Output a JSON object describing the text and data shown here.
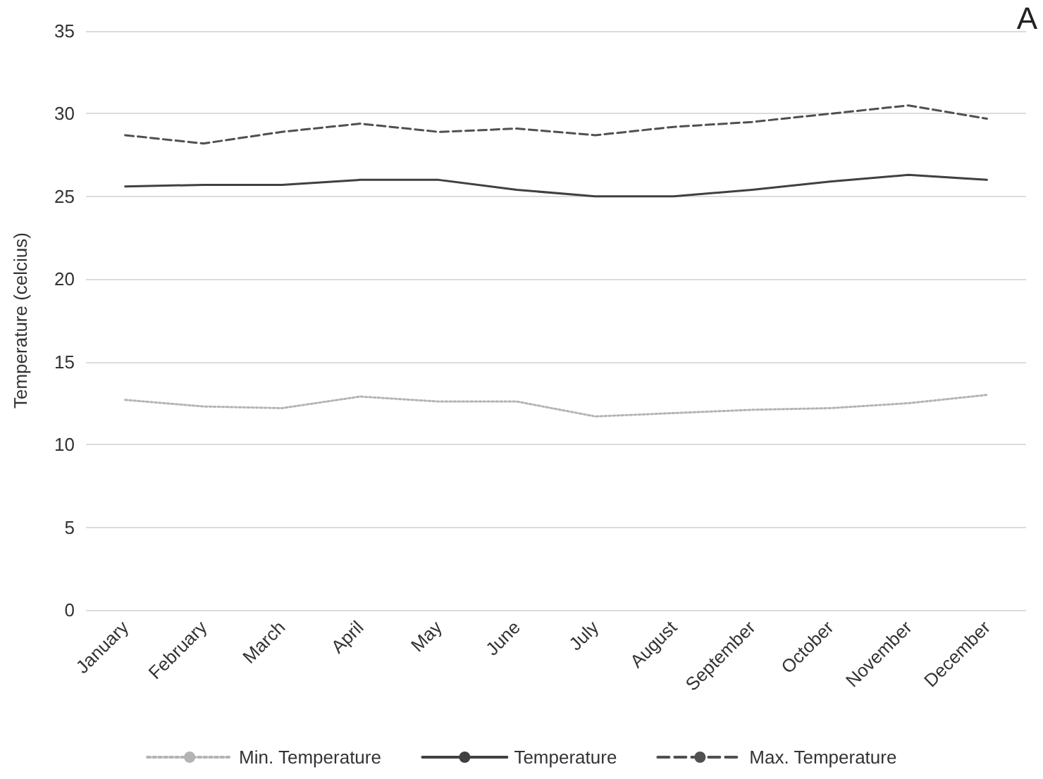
{
  "chart_data": {
    "type": "line",
    "ylabel": "Temperature (celcius)",
    "annotations": [
      "A"
    ],
    "categories": [
      "January",
      "February",
      "March",
      "April",
      "May",
      "June",
      "July",
      "August",
      "September",
      "October",
      "November",
      "December"
    ],
    "series": [
      {
        "name": "Min. Temperature",
        "color": "#b4b4b4",
        "line_style": "dotted",
        "values": [
          12.7,
          12.3,
          12.2,
          12.9,
          12.6,
          12.6,
          11.7,
          11.9,
          12.1,
          12.2,
          12.5,
          13.0
        ]
      },
      {
        "name": "Temperature",
        "color": "#404040",
        "line_style": "solid",
        "values": [
          25.6,
          25.7,
          25.7,
          26.0,
          26.0,
          25.4,
          25.0,
          25.0,
          25.4,
          25.9,
          26.3,
          26.0
        ]
      },
      {
        "name": "Max. Temperature",
        "color": "#505050",
        "line_style": "dashed",
        "values": [
          28.7,
          28.2,
          28.9,
          29.4,
          28.9,
          29.1,
          28.7,
          29.2,
          29.5,
          30.0,
          30.5,
          29.7
        ]
      }
    ],
    "ylim": [
      0,
      35
    ],
    "yticks": [
      0,
      5,
      10,
      15,
      20,
      25,
      30,
      35
    ],
    "grid": "y",
    "legend": "bottom",
    "marker": "none"
  }
}
